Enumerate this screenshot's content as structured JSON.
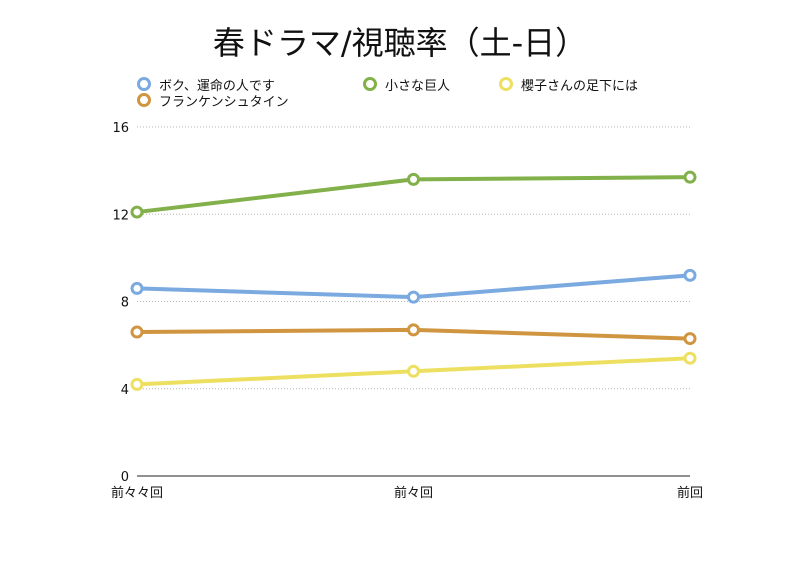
{
  "chart_data": {
    "type": "line",
    "title": "春ドラマ/視聴率（土-日）",
    "categories": [
      "前々々回",
      "前々回",
      "前回"
    ],
    "series": [
      {
        "name": "ボク、運命の人です",
        "values": [
          8.6,
          8.2,
          9.2
        ],
        "color": "#7aaae0"
      },
      {
        "name": "小さな巨人",
        "values": [
          12.1,
          13.6,
          13.7
        ],
        "color": "#82b04a"
      },
      {
        "name": "櫻子さんの足下には",
        "values": [
          4.2,
          4.8,
          5.4
        ],
        "color": "#ede060"
      },
      {
        "name": "フランケンシュタイン",
        "values": [
          6.6,
          6.7,
          6.3
        ],
        "color": "#cf9540"
      }
    ],
    "y_ticks": [
      0,
      4,
      8,
      12,
      16
    ],
    "ylim": [
      0,
      16
    ],
    "grid": true,
    "legend_position": "top"
  }
}
